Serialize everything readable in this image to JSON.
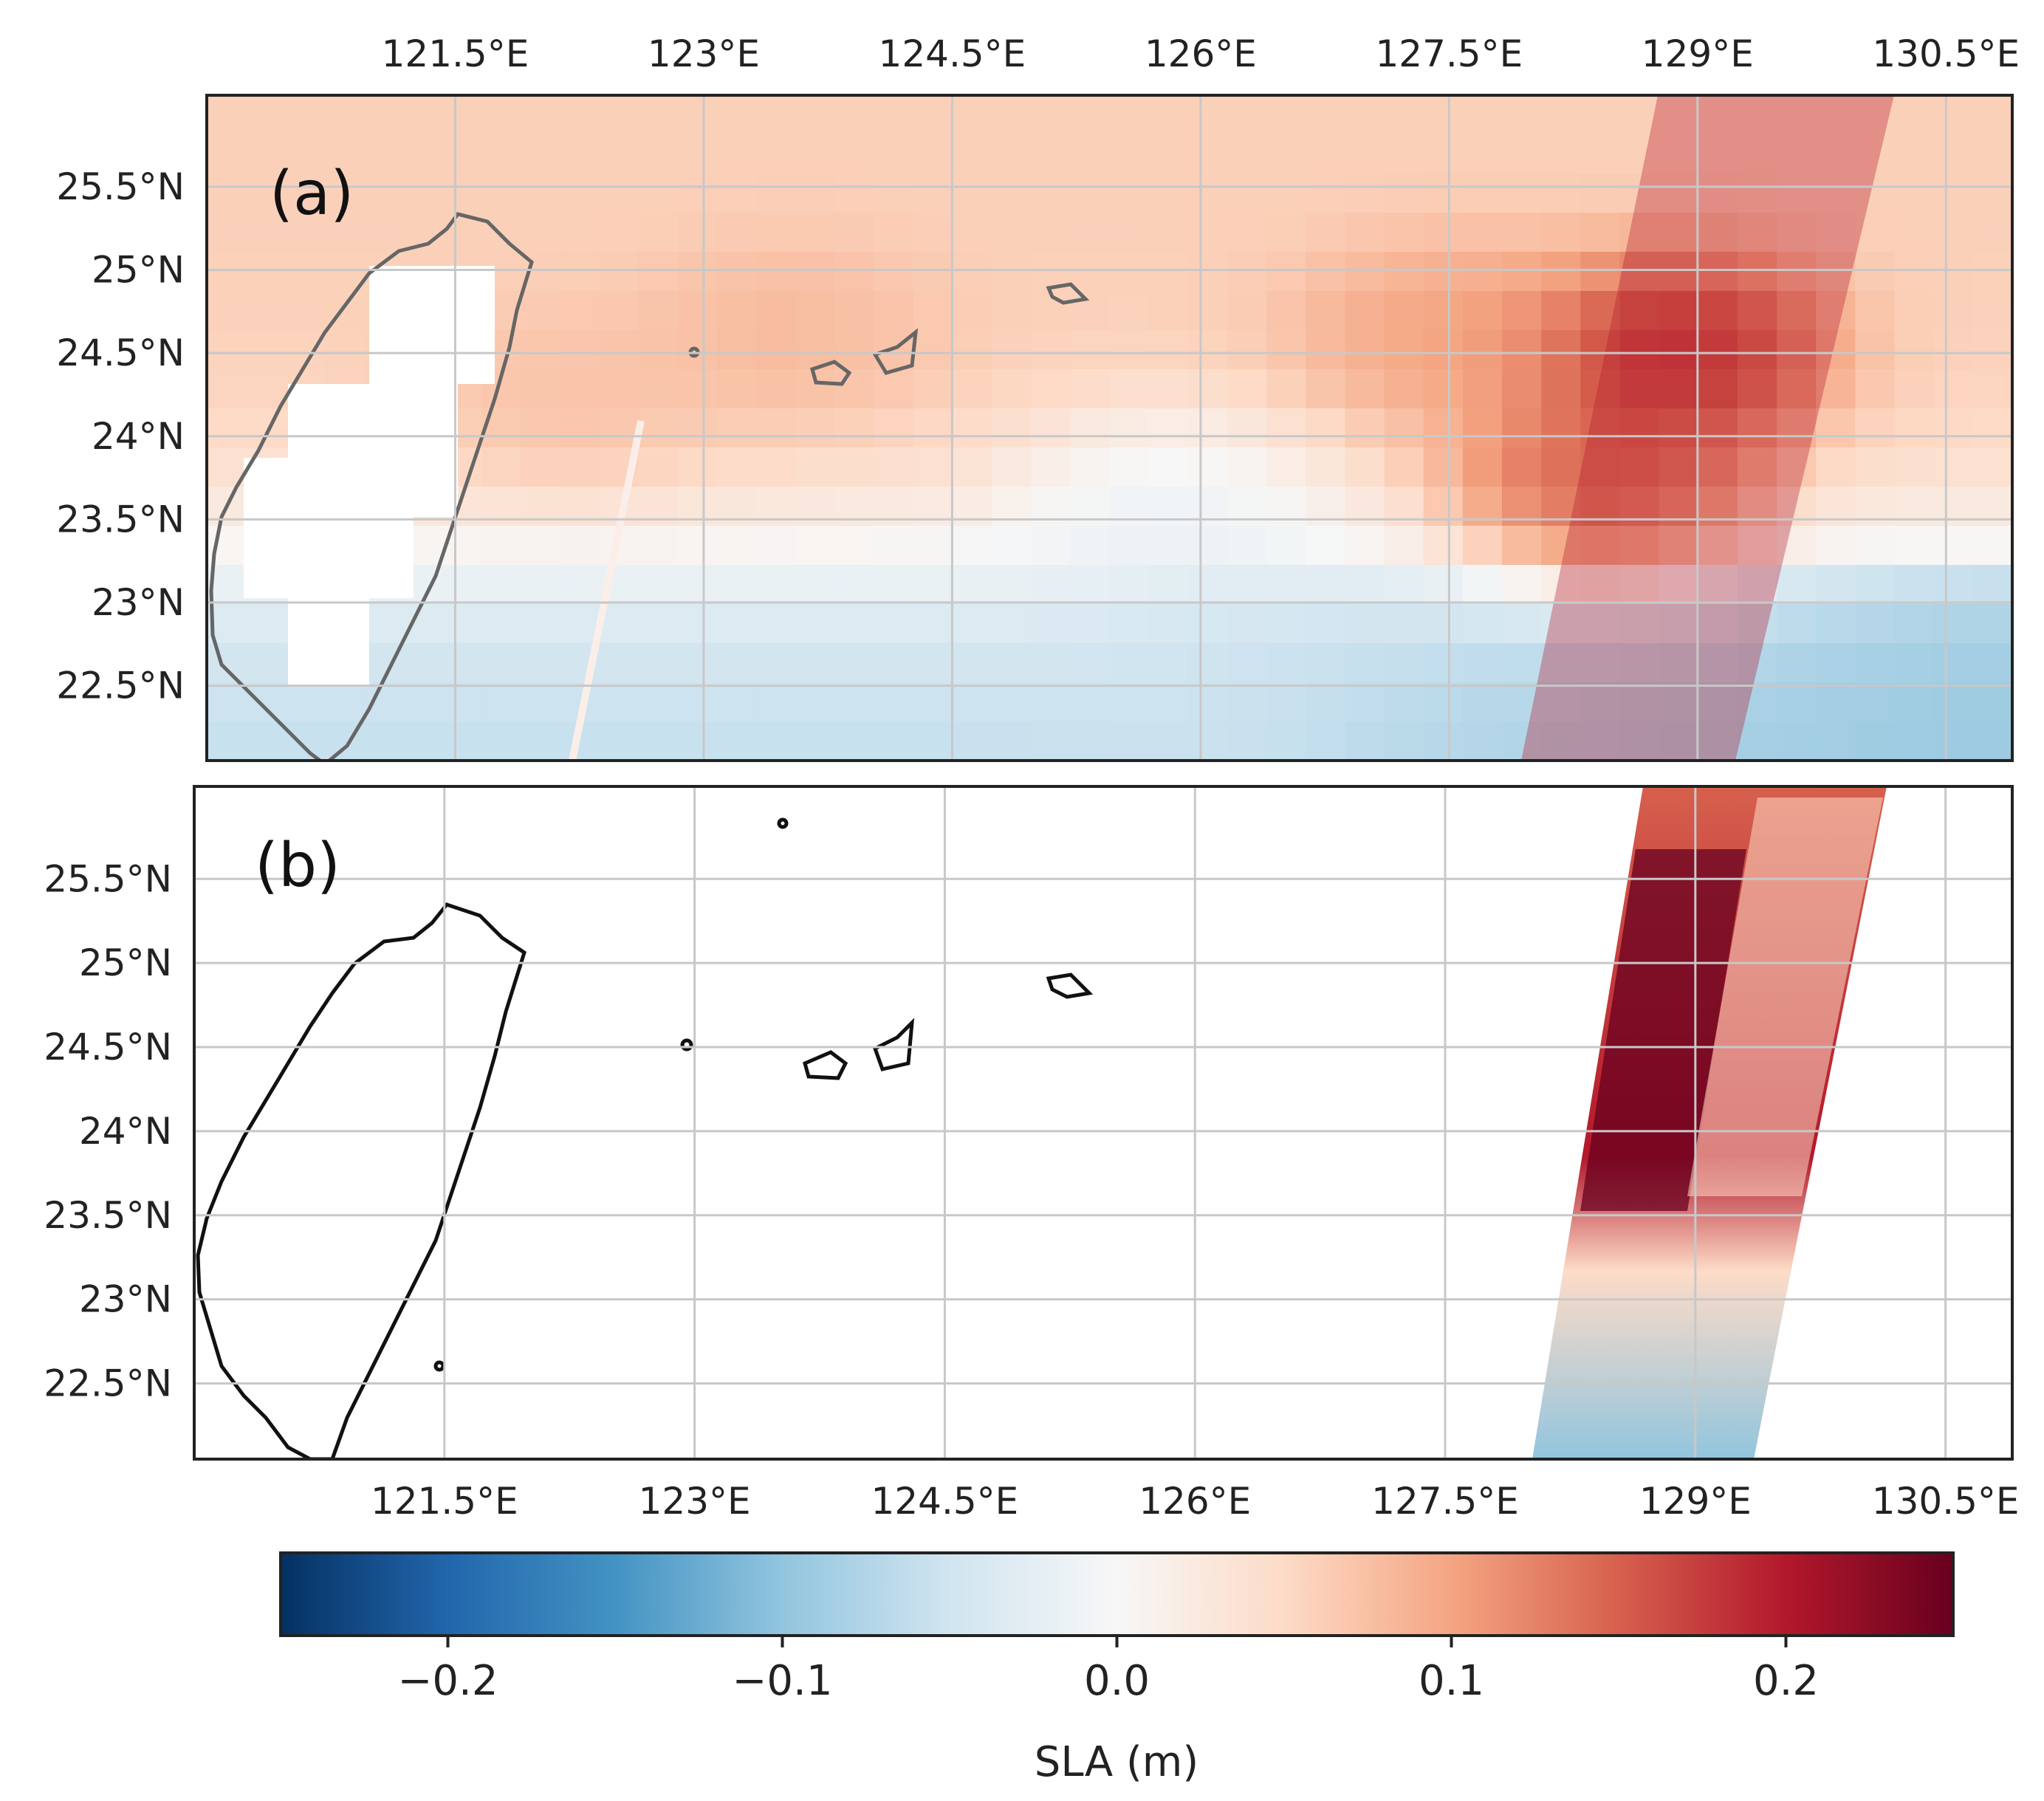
{
  "figure": {
    "panel_a_label": "(a)",
    "panel_b_label": "(b)"
  },
  "axes": {
    "lon_ticks": [
      "121.5°E",
      "123°E",
      "124.5°E",
      "126°E",
      "127.5°E",
      "129°E",
      "130.5°E"
    ],
    "lon_values": [
      121.5,
      123,
      124.5,
      126,
      127.5,
      129,
      130.5
    ],
    "lat_ticks": [
      "25.5°N",
      "25°N",
      "24.5°N",
      "24°N",
      "23.5°N",
      "23°N",
      "22.5°N"
    ],
    "lat_values": [
      25.5,
      25,
      24.5,
      24,
      23.5,
      23,
      22.5
    ],
    "lon_range": [
      120.0,
      130.9
    ],
    "lat_range": [
      22.05,
      26.05
    ]
  },
  "colorbar": {
    "title": "SLA (m)",
    "tick_labels": [
      "−0.2",
      "−0.1",
      "0.0",
      "0.1",
      "0.2"
    ],
    "tick_values": [
      -0.2,
      -0.1,
      0.0,
      0.1,
      0.2
    ],
    "range": [
      -0.25,
      0.25
    ],
    "colormap": "RdBu_r",
    "stops": [
      "#053061",
      "#2166ac",
      "#4393c3",
      "#92c5de",
      "#d1e5f0",
      "#f7f7f7",
      "#fddbc7",
      "#f4a582",
      "#d6604d",
      "#b2182b",
      "#67001f"
    ]
  },
  "chart_data": {
    "type": "heatmap",
    "title": "",
    "colorbar_label": "SLA (m)",
    "value_range": [
      -0.25,
      0.25
    ],
    "panels": [
      {
        "label": "(a)",
        "description_of_field": "gridded SLA, positive (red) north of ~23.3°N, negative (blue) to the south-east; strongest maximum near 128.7°E, 24.3°N",
        "features": [
          {
            "lon": 128.8,
            "lat": 24.5,
            "sla": 0.24
          },
          {
            "lon": 128.4,
            "lat": 23.7,
            "sla": 0.2
          },
          {
            "lon": 127.5,
            "lat": 24.6,
            "sla": 0.12
          },
          {
            "lon": 123.5,
            "lat": 24.6,
            "sla": 0.09
          },
          {
            "lon": 122.2,
            "lat": 24.2,
            "sla": 0.08
          },
          {
            "lon": 125.8,
            "lat": 23.6,
            "sla": -0.03
          },
          {
            "lon": 126.0,
            "lat": 22.3,
            "sla": -0.05
          },
          {
            "lon": 130.5,
            "lat": 22.4,
            "sla": -0.09
          }
        ]
      },
      {
        "label": "(b)",
        "description_of_field": "swath SLA between ~127.7°E and ~130.3°E, positive north of ~23°N, negative south of ~23°N",
        "features": [
          {
            "lon": 128.7,
            "lat": 24.8,
            "sla": 0.24
          },
          {
            "lon": 128.5,
            "lat": 23.6,
            "sla": 0.2
          },
          {
            "lon": 129.6,
            "lat": 25.3,
            "sla": 0.1
          },
          {
            "lon": 129.4,
            "lat": 24.0,
            "sla": 0.06
          },
          {
            "lon": 128.6,
            "lat": 22.6,
            "sla": -0.05
          }
        ]
      }
    ]
  }
}
